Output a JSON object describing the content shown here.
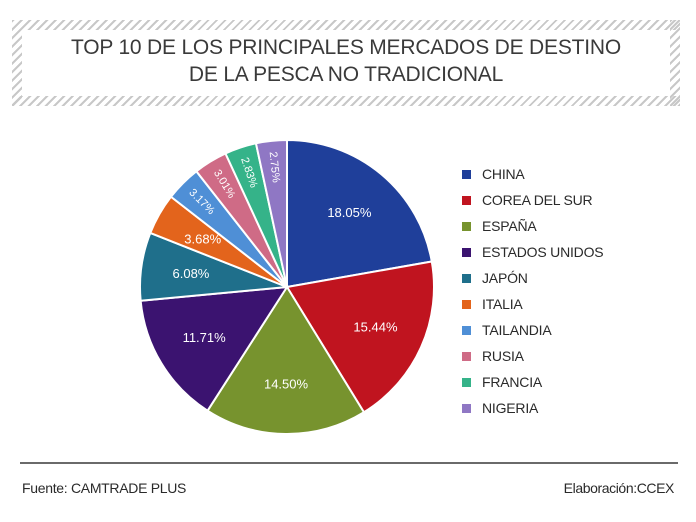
{
  "title": {
    "line1": "TOP 10 DE LOS PRINCIPALES MERCADOS DE DESTINO",
    "line2": "DE LA PESCA NO TRADICIONAL"
  },
  "chart_data": {
    "type": "pie",
    "categories": [
      "CHINA",
      "COREA DEL SUR",
      "ESPAÑA",
      "ESTADOS UNIDOS",
      "JAPÓN",
      "ITALIA",
      "TAILANDIA",
      "RUSIA",
      "FRANCIA",
      "NIGERIA"
    ],
    "values": [
      18.05,
      15.44,
      14.5,
      11.71,
      6.08,
      3.68,
      3.17,
      3.01,
      2.83,
      2.75
    ],
    "labels": [
      "18.05%",
      "15.44%",
      "14.50%",
      "11.71%",
      "6.08%",
      "3.68%",
      "3.17%",
      "3.01%",
      "2.83%",
      "2.75%"
    ],
    "colors": [
      "#1f3f9a",
      "#c0141f",
      "#77932e",
      "#3b1370",
      "#1f6f8b",
      "#e3641c",
      "#4f8fd6",
      "#cf6b86",
      "#35b389",
      "#8f77c4"
    ],
    "legend_position": "right"
  },
  "footer": {
    "source": "Fuente: CAMTRADE PLUS",
    "credit": "Elaboración:CCEX"
  }
}
